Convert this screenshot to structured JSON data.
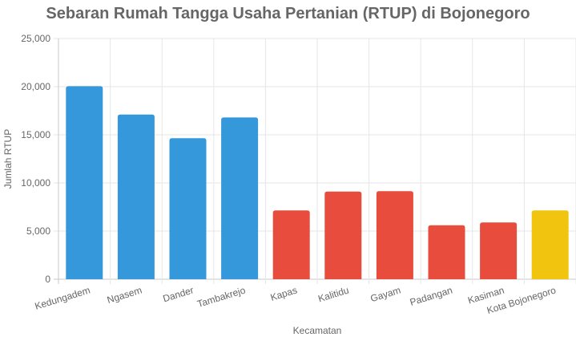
{
  "chart_data": {
    "type": "bar",
    "title": "Sebaran Rumah Tangga Usaha Pertanian (RTUP) di Bojonegoro",
    "xlabel": "Kecamatan",
    "ylabel": "Jumlah RTUP",
    "categories": [
      "Kedungadem",
      "Ngasem",
      "Dander",
      "Tambakrejo",
      "Kapas",
      "Kalitidu",
      "Gayam",
      "Padangan",
      "Kasiman",
      "Kota Bojonegoro"
    ],
    "values": [
      20050,
      17100,
      14650,
      16800,
      7150,
      9100,
      9150,
      5600,
      5900,
      7150
    ],
    "bar_colors": [
      "#3498db",
      "#3498db",
      "#3498db",
      "#3498db",
      "#e74c3c",
      "#e74c3c",
      "#e74c3c",
      "#e74c3c",
      "#e74c3c",
      "#f1c40f"
    ],
    "ylim": [
      0,
      25000
    ],
    "yticks": [
      0,
      5000,
      10000,
      15000,
      20000,
      25000
    ],
    "ytick_labels": [
      "0",
      "5,000",
      "10,000",
      "15,000",
      "20,000",
      "25,000"
    ],
    "grid": true,
    "legend": "none"
  }
}
